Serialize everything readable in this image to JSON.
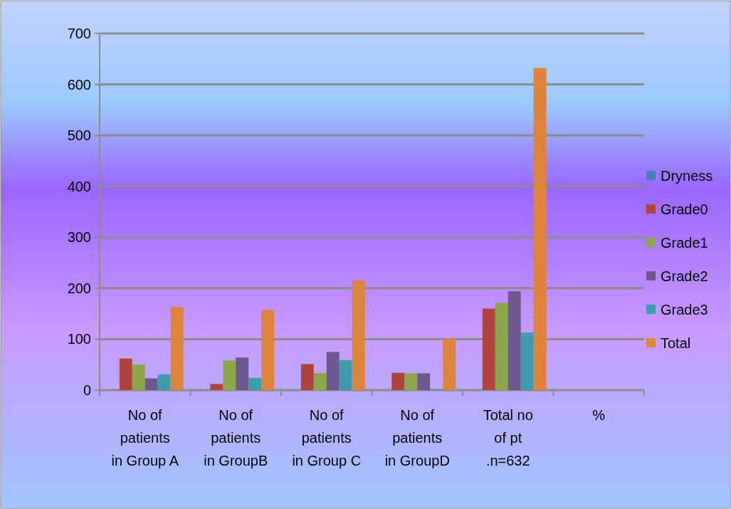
{
  "chart_data": {
    "type": "bar",
    "categories": [
      "No of patients in Group A",
      "No of patients in GroupB",
      "No of patients in Group C",
      "No of patients in GroupD",
      "Total no of pt .n=632",
      "%"
    ],
    "series": [
      {
        "name": "Dryness",
        "color": "#4a7eb5",
        "values": [
          null,
          null,
          null,
          null,
          null,
          null
        ]
      },
      {
        "name": "Grade0",
        "color": "#b0433f",
        "values": [
          62,
          12,
          51,
          34,
          160,
          null
        ]
      },
      {
        "name": "Grade1",
        "color": "#8ba64b",
        "values": [
          50,
          58,
          33,
          33,
          171,
          null
        ]
      },
      {
        "name": "Grade2",
        "color": "#6f5890",
        "values": [
          23,
          64,
          75,
          33,
          194,
          null
        ]
      },
      {
        "name": "Grade3",
        "color": "#3f9cb0",
        "values": [
          31,
          24,
          59,
          2,
          113,
          null
        ]
      },
      {
        "name": "Total",
        "color": "#dd843c",
        "values": [
          163,
          157,
          215,
          101,
          632,
          null
        ]
      }
    ],
    "ylim": [
      0,
      700
    ],
    "yticks": [
      0,
      100,
      200,
      300,
      400,
      500,
      600,
      700
    ],
    "grid": "y",
    "legend": "right"
  }
}
